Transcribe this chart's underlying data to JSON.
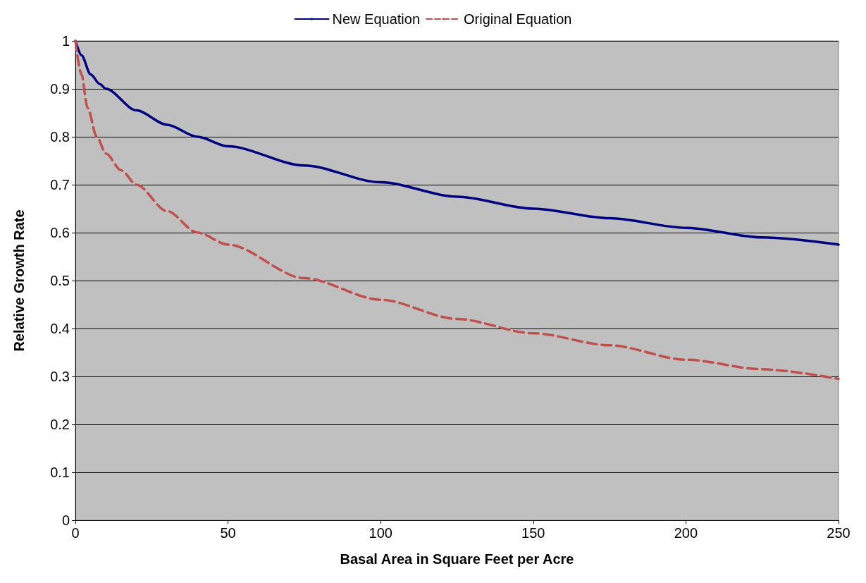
{
  "chart_data": {
    "type": "line",
    "xlabel": "Basal Area in Square Feet per Acre",
    "ylabel": "Relative Growth Rate",
    "series": [
      {
        "name": "New Equation",
        "color": "#000080",
        "line_style": "solid",
        "x": [
          0,
          2,
          5,
          8,
          10,
          20,
          30,
          40,
          50,
          75,
          100,
          125,
          150,
          175,
          200,
          225,
          250
        ],
        "values": [
          1,
          0.97,
          0.93,
          0.91,
          0.9,
          0.855,
          0.825,
          0.8,
          0.78,
          0.74,
          0.705,
          0.675,
          0.65,
          0.63,
          0.61,
          0.59,
          0.575
        ]
      },
      {
        "name": "Original Equation",
        "color": "#c0504d",
        "line_style": "dashed",
        "x": [
          0,
          2,
          4,
          7,
          10,
          15,
          20,
          30,
          40,
          50,
          75,
          100,
          125,
          150,
          175,
          200,
          225,
          250
        ],
        "values": [
          1,
          0.93,
          0.86,
          0.8,
          0.765,
          0.73,
          0.7,
          0.645,
          0.6,
          0.575,
          0.505,
          0.46,
          0.42,
          0.39,
          0.365,
          0.335,
          0.315,
          0.295
        ]
      }
    ],
    "xlim": [
      0,
      250
    ],
    "xticks": [
      0,
      50,
      100,
      150,
      200,
      250
    ],
    "ylim": [
      0,
      1
    ],
    "yticks": [
      0,
      0.1,
      0.2,
      0.3,
      0.4,
      0.5,
      0.6,
      0.7,
      0.8,
      0.9,
      1
    ],
    "grid": "y",
    "legend": "top",
    "marker": "none"
  }
}
